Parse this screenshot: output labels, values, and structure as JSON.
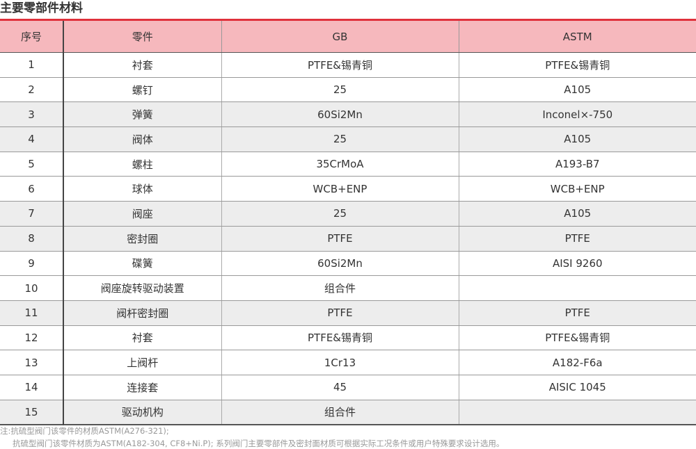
{
  "title": "主要零部件材料",
  "colors": {
    "accent": "#e0313b",
    "header_bg": "#f6b8bd",
    "shade_row": "#ededed"
  },
  "columns": [
    "序号",
    "零件",
    "GB",
    "ASTM"
  ],
  "rows": [
    {
      "no": "1",
      "part": "衬套",
      "gb": "PTFE&锡青铜",
      "astm": "PTFE&锡青铜",
      "shaded": false
    },
    {
      "no": "2",
      "part": "螺钉",
      "gb": "25",
      "astm": "A105",
      "shaded": false
    },
    {
      "no": "3",
      "part": "弹簧",
      "gb": "60Si2Mn",
      "astm": "Inconel×-750",
      "shaded": true
    },
    {
      "no": "4",
      "part": "阀体",
      "gb": "25",
      "astm": "A105",
      "shaded": true
    },
    {
      "no": "5",
      "part": "螺柱",
      "gb": "35CrMoA",
      "astm": "A193-B7",
      "shaded": false
    },
    {
      "no": "6",
      "part": "球体",
      "gb": "WCB+ENP",
      "astm": "WCB+ENP",
      "shaded": false
    },
    {
      "no": "7",
      "part": "阀座",
      "gb": "25",
      "astm": "A105",
      "shaded": true
    },
    {
      "no": "8",
      "part": "密封圈",
      "gb": "PTFE",
      "astm": "PTFE",
      "shaded": true
    },
    {
      "no": "9",
      "part": "碟簧",
      "gb": "60Si2Mn",
      "astm": "AISI 9260",
      "shaded": false
    },
    {
      "no": "10",
      "part": "阀座旋转驱动装置",
      "gb": "组合件",
      "astm": "",
      "shaded": false
    },
    {
      "no": "11",
      "part": "阀杆密封圈",
      "gb": "PTFE",
      "astm": "PTFE",
      "shaded": true
    },
    {
      "no": "12",
      "part": "衬套",
      "gb": "PTFE&锡青铜",
      "astm": "PTFE&锡青铜",
      "shaded": false
    },
    {
      "no": "13",
      "part": "上阀杆",
      "gb": "1Cr13",
      "astm": "A182-F6a",
      "shaded": false
    },
    {
      "no": "14",
      "part": "连接套",
      "gb": "45",
      "astm": "AISIC 1045",
      "shaded": false
    },
    {
      "no": "15",
      "part": "驱动机构",
      "gb": "组合件",
      "astm": "",
      "shaded": true
    }
  ],
  "notes": [
    "注:抗硫型阀门该零件的材质ASTM(A276-321);",
    "抗硫型阀门该零件材质为ASTM(A182-304, CF8+Ni.P); 系列阀门主要零部件及密封面材质可根据实际工况条件或用户特殊要求设计选用。"
  ]
}
